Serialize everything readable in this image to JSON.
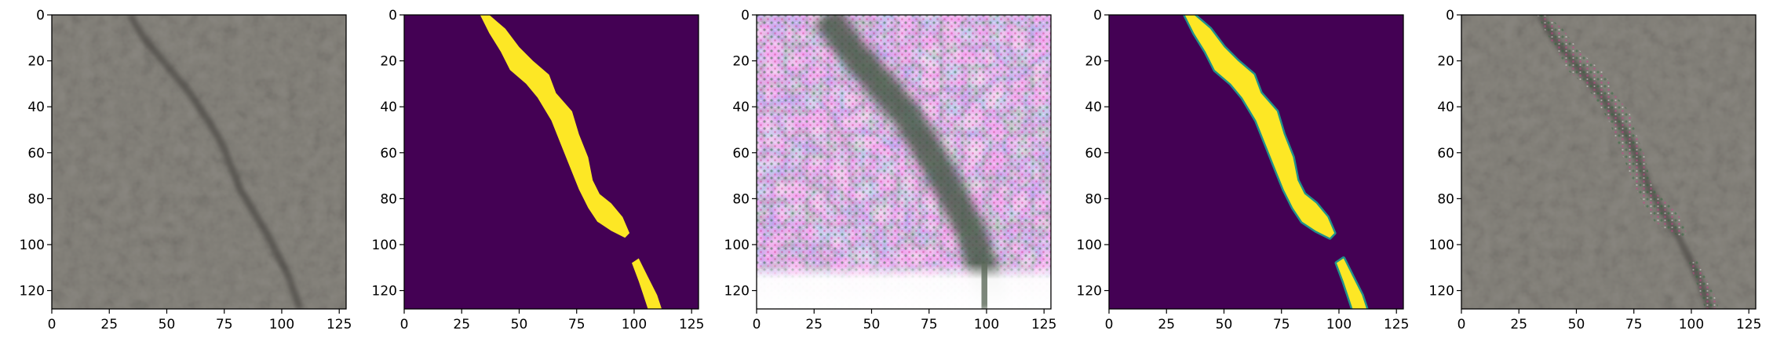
{
  "figure": {
    "panels": [
      {
        "id": "input-photo",
        "kind": "photo"
      },
      {
        "id": "ground-truth-mask",
        "kind": "mask"
      },
      {
        "id": "saliency-image",
        "kind": "saliency"
      },
      {
        "id": "predicted-mask",
        "kind": "soft-mask"
      },
      {
        "id": "overlay-photo",
        "kind": "overlay"
      }
    ],
    "x_ticks": [
      "0",
      "25",
      "50",
      "75",
      "100",
      "125"
    ],
    "y_ticks": [
      "0",
      "20",
      "40",
      "60",
      "80",
      "100",
      "120"
    ],
    "image_size": 128,
    "mask_colors": {
      "background": "#440154",
      "foreground": "#fde725",
      "edge": "#21918c"
    },
    "photo_colors": {
      "base": "#8a8780",
      "crack": "#3a3835"
    }
  }
}
